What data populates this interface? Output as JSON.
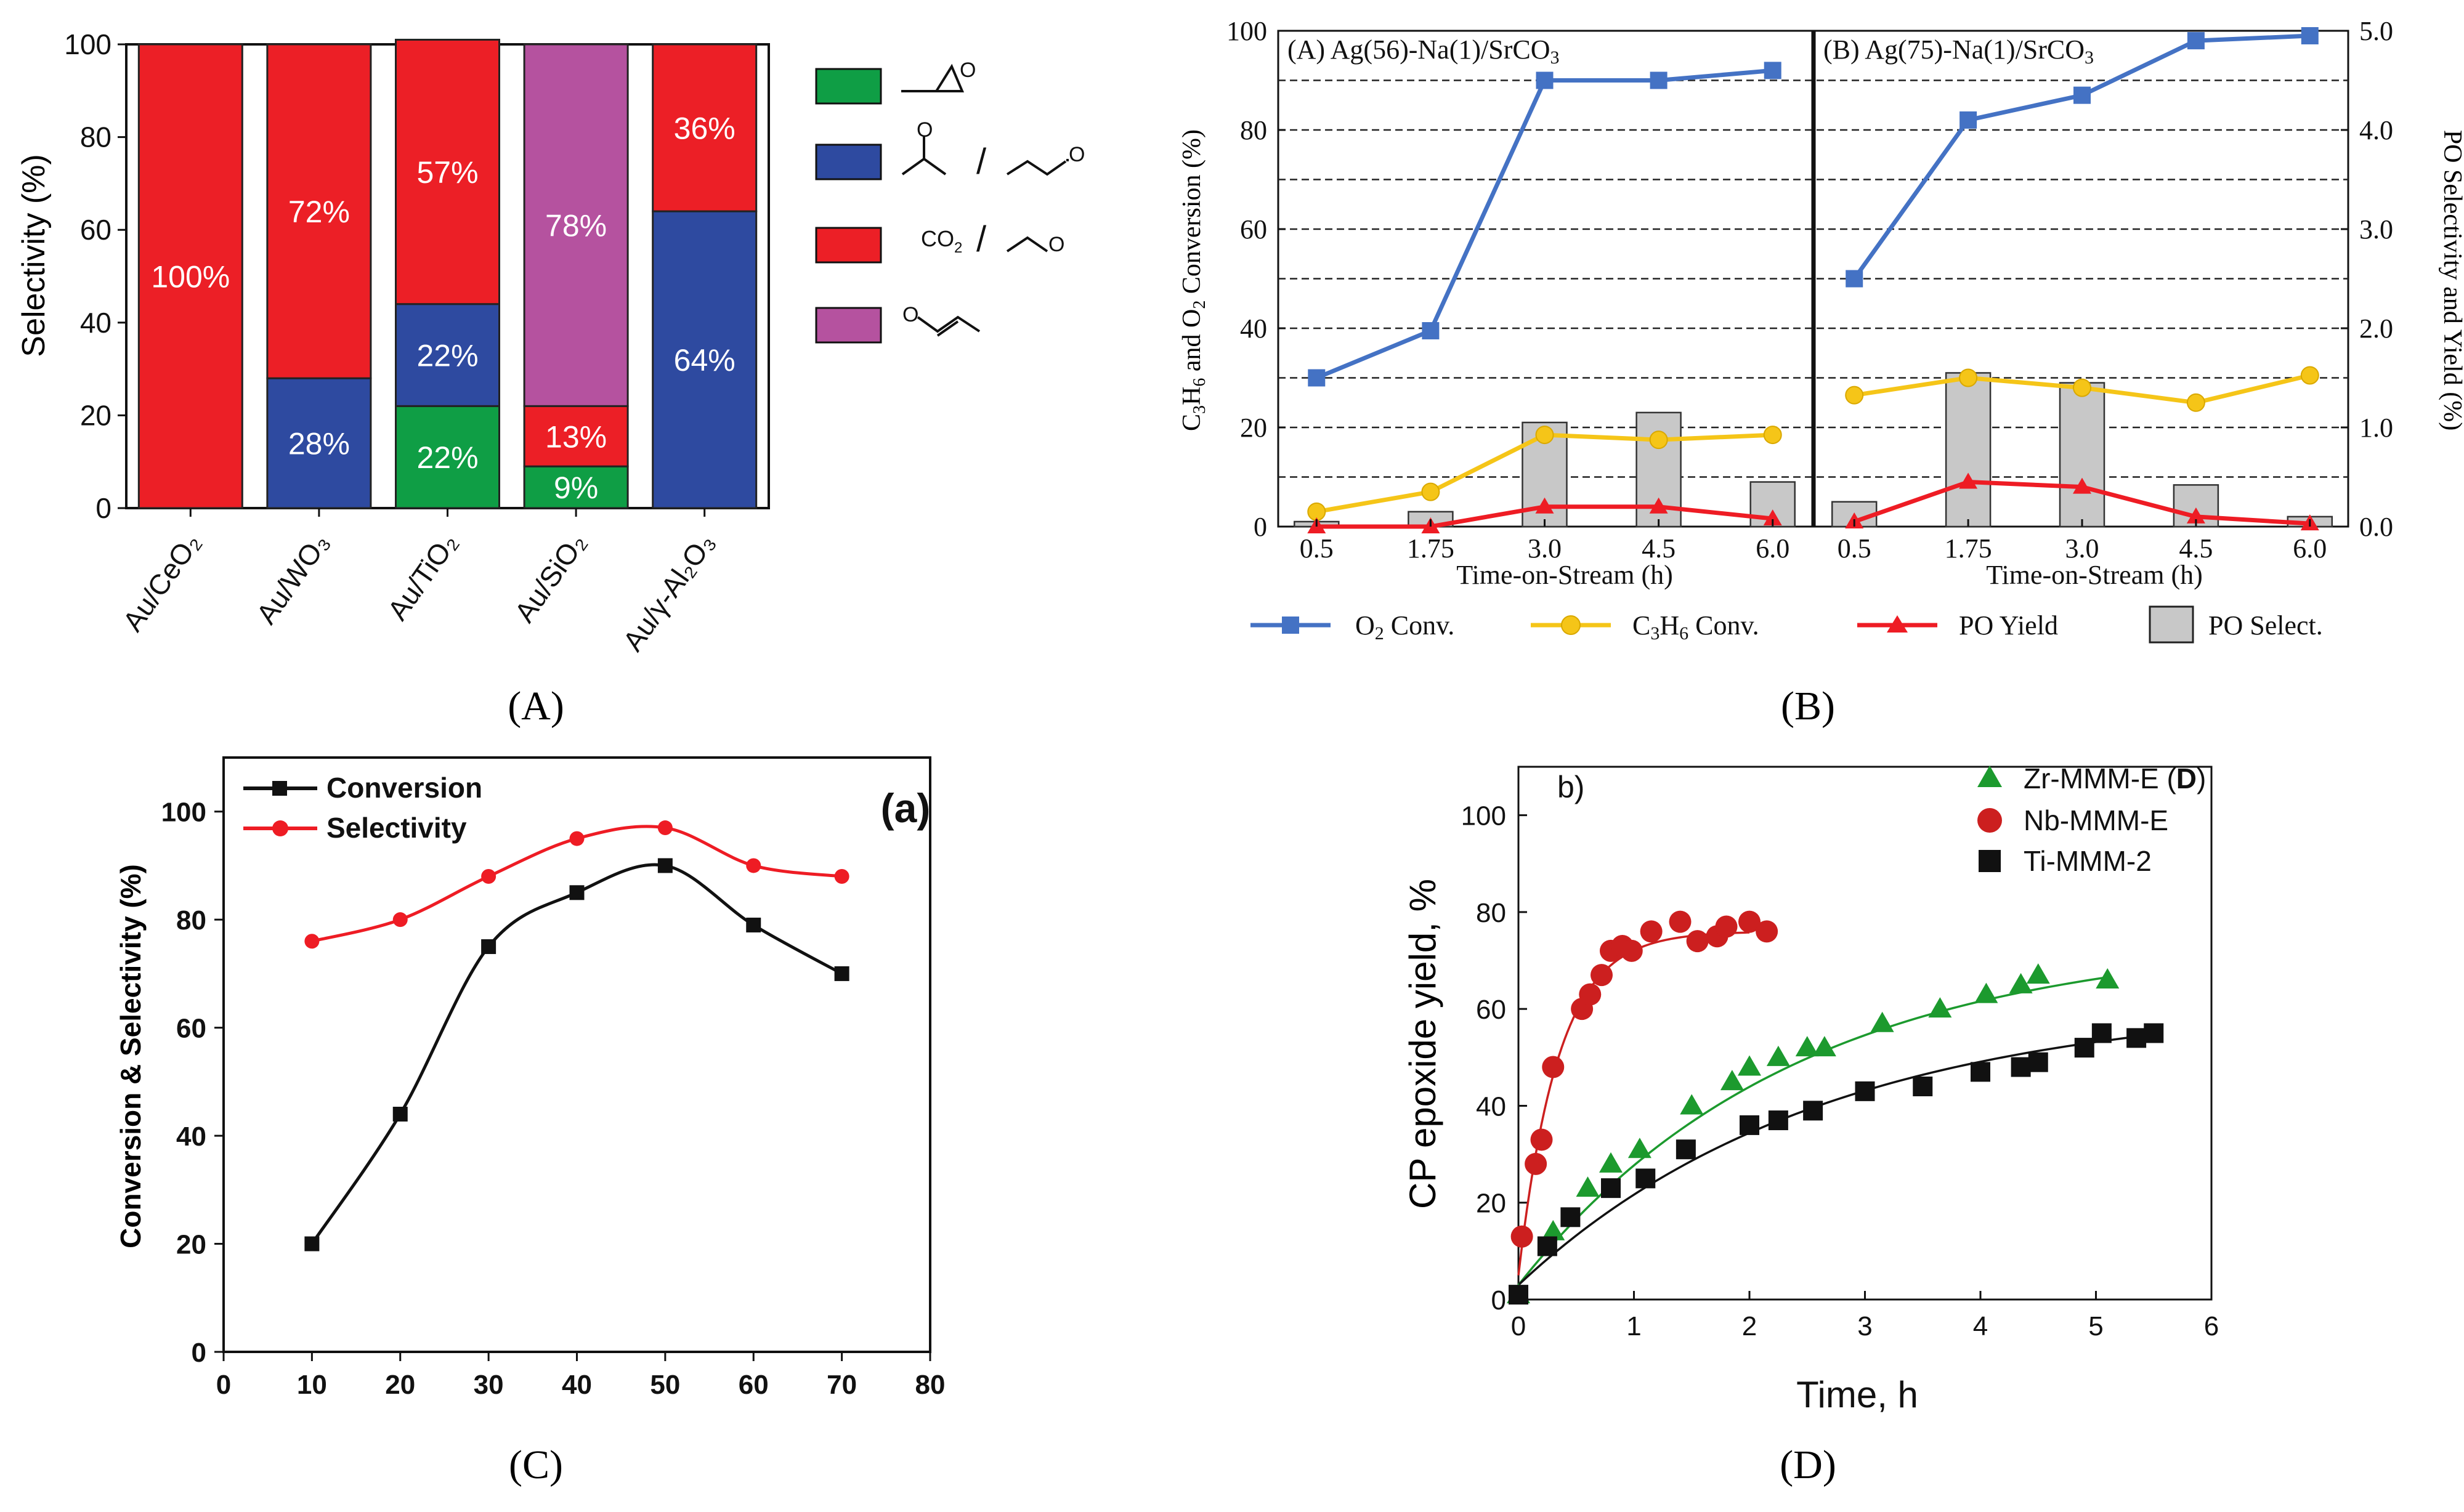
{
  "chart_data": [
    {
      "panel": "A",
      "panel_label": "(A)",
      "type": "bar",
      "stacked": true,
      "ylabel": "Selectivity (%)",
      "ylim": [
        0,
        100
      ],
      "yticks": [
        "0",
        "20",
        "40",
        "60",
        "80",
        "100"
      ],
      "categories": [
        "Au/CeO₂",
        "Au/WO₃",
        "Au/TiO₂",
        "Au/SiO₂",
        "Au/γ-Al₂O₃"
      ],
      "series": [
        {
          "name": "propylene oxide",
          "color": "#0f9e45",
          "values": [
            0,
            0,
            22,
            9,
            0
          ],
          "labels": [
            "",
            "",
            "22%",
            "9%",
            ""
          ]
        },
        {
          "name": "acetone / propanal",
          "color": "#2e4aa0",
          "values": [
            0,
            28,
            22,
            0,
            64
          ],
          "labels": [
            "",
            "28%",
            "22%",
            "",
            "64%"
          ]
        },
        {
          "name": "CO₂ / acetaldehyde",
          "color": "#ec1f26",
          "values": [
            100,
            72,
            57,
            13,
            36
          ],
          "labels": [
            "100%",
            "72%",
            "57%",
            "13%",
            "36%"
          ]
        },
        {
          "name": "acrolein",
          "color": "#b5529f",
          "values": [
            0,
            0,
            0,
            78,
            0
          ],
          "labels": [
            "",
            "",
            "",
            "78%",
            ""
          ]
        }
      ],
      "legend_text": {
        "co2": "CO",
        "co2_sub": "2",
        "slash1": "/",
        "slash2": "/"
      }
    },
    {
      "panel": "B",
      "panel_label": "(B)",
      "type": "bar+line",
      "ylabel_left": {
        "p1": "C",
        "s1": "3",
        "p2": "H",
        "s2": "6",
        "p3": " and O",
        "s3": "2",
        "p4": " Conversion (%)"
      },
      "ylabel_right": "PO Selectivity and Yield (%)",
      "ylim_left": [
        0,
        100
      ],
      "ylim_right": [
        0,
        5
      ],
      "yticks_left": [
        "0",
        "20",
        "40",
        "60",
        "80",
        "100"
      ],
      "yticks_right": [
        "0.0",
        "1.0",
        "2.0",
        "3.0",
        "4.0",
        "5.0"
      ],
      "xlabel": "Time-on-Stream (h)",
      "subpanels": [
        {
          "title": {
            "p1": "(A) Ag(56)-Na(1)/SrCO",
            "s1": "3"
          },
          "x": [
            "0.5",
            "1.75",
            "3.0",
            "4.5",
            "6.0"
          ],
          "o2_conv": [
            30,
            39.5,
            90,
            90,
            92
          ],
          "c3h6_conv": [
            3,
            7,
            18.5,
            17.5,
            18.5
          ],
          "po_yield_pct": [
            0.0,
            0.0,
            0.2,
            0.2,
            0.08
          ],
          "po_select_pct": [
            0.05,
            0.15,
            1.05,
            1.15,
            0.45
          ]
        },
        {
          "title": {
            "p1": "(B) Ag(75)-Na(1)/SrCO",
            "s1": "3"
          },
          "x": [
            "0.5",
            "1.75",
            "3.0",
            "4.5",
            "6.0"
          ],
          "o2_conv": [
            50,
            82,
            87,
            98,
            99
          ],
          "c3h6_conv": [
            26.5,
            30,
            28,
            25,
            30.5
          ],
          "po_yield_pct": [
            0.05,
            0.45,
            0.4,
            0.1,
            0.03
          ],
          "po_select_pct": [
            0.25,
            1.55,
            1.45,
            0.42,
            0.1
          ]
        }
      ],
      "legend": [
        {
          "key": "o2",
          "p1": "O",
          "s1": "2",
          "p2": " Conv.",
          "color": "#4472c4"
        },
        {
          "key": "c3h6",
          "p1": "C",
          "s1": "3",
          "p2": "H",
          "s2": "6",
          "p3": " Conv.",
          "color": "#f5c518"
        },
        {
          "key": "yield",
          "p1": "PO Yield",
          "color": "#ee1c24"
        },
        {
          "key": "select",
          "p1": "PO Select.",
          "color": "#c8c8c8"
        }
      ]
    },
    {
      "panel": "C",
      "panel_label": "(C)",
      "type": "line",
      "inner_label": "(a)",
      "ylabel": "Conversion & Selectivity (%)",
      "xlim": [
        0,
        80
      ],
      "ylim": [
        0,
        110
      ],
      "xticks": [
        "0",
        "10",
        "20",
        "30",
        "40",
        "50",
        "60",
        "70",
        "80"
      ],
      "yticks": [
        "0",
        "20",
        "40",
        "60",
        "80",
        "100"
      ],
      "series": [
        {
          "name": "Conversion",
          "color": "#111111",
          "marker": "square",
          "x": [
            10,
            20,
            30,
            40,
            50,
            60,
            70
          ],
          "y": [
            20,
            44,
            75,
            85,
            90,
            79,
            70
          ]
        },
        {
          "name": "Selectivity",
          "color": "#ee1c24",
          "marker": "circle",
          "x": [
            10,
            20,
            30,
            40,
            50,
            60,
            70
          ],
          "y": [
            76,
            80,
            88,
            95,
            97,
            90,
            88
          ]
        }
      ]
    },
    {
      "panel": "D",
      "panel_label": "(D)",
      "type": "scatter",
      "inner_label": "b)",
      "xlabel": "Time, h",
      "ylabel": "CP epoxide yield, %",
      "xlim": [
        0,
        6
      ],
      "ylim": [
        0,
        110
      ],
      "xticks": [
        "0",
        "1",
        "2",
        "3",
        "4",
        "5",
        "6"
      ],
      "yticks": [
        "0",
        "20",
        "40",
        "60",
        "80",
        "100"
      ],
      "series": [
        {
          "name": "Zr-MMM-E (",
          "name_bold": "D",
          "name_end": ")",
          "color": "#1c9a2e",
          "marker": "triangle",
          "x": [
            0.0,
            0.3,
            0.6,
            0.8,
            1.05,
            1.5,
            1.85,
            2.0,
            2.25,
            2.5,
            2.65,
            3.15,
            3.65,
            4.05,
            4.35,
            4.5,
            5.1
          ],
          "y": [
            1,
            14,
            23,
            28,
            31,
            40,
            45,
            48,
            50,
            52,
            52,
            57,
            60,
            63,
            65,
            67,
            66
          ]
        },
        {
          "name": "Nb-MMM-E",
          "color": "#cc1f1f",
          "marker": "circle",
          "x": [
            0.03,
            0.15,
            0.2,
            0.3,
            0.55,
            0.62,
            0.72,
            0.8,
            0.9,
            0.98,
            1.15,
            1.4,
            1.55,
            1.72,
            1.8,
            2.0,
            2.15
          ],
          "y": [
            13,
            28,
            33,
            48,
            60,
            63,
            67,
            72,
            73,
            72,
            76,
            78,
            74,
            75,
            77,
            78,
            76
          ]
        },
        {
          "name": "Ti-MMM-2",
          "color": "#111111",
          "marker": "square",
          "x": [
            0.0,
            0.25,
            0.45,
            0.8,
            1.1,
            1.45,
            2.0,
            2.25,
            2.55,
            3.0,
            3.5,
            4.0,
            4.35,
            4.5,
            4.9,
            5.05,
            5.35,
            5.5
          ],
          "y": [
            1,
            11,
            17,
            23,
            25,
            31,
            36,
            37,
            39,
            43,
            44,
            47,
            48,
            49,
            52,
            55,
            54,
            55
          ]
        }
      ]
    }
  ]
}
